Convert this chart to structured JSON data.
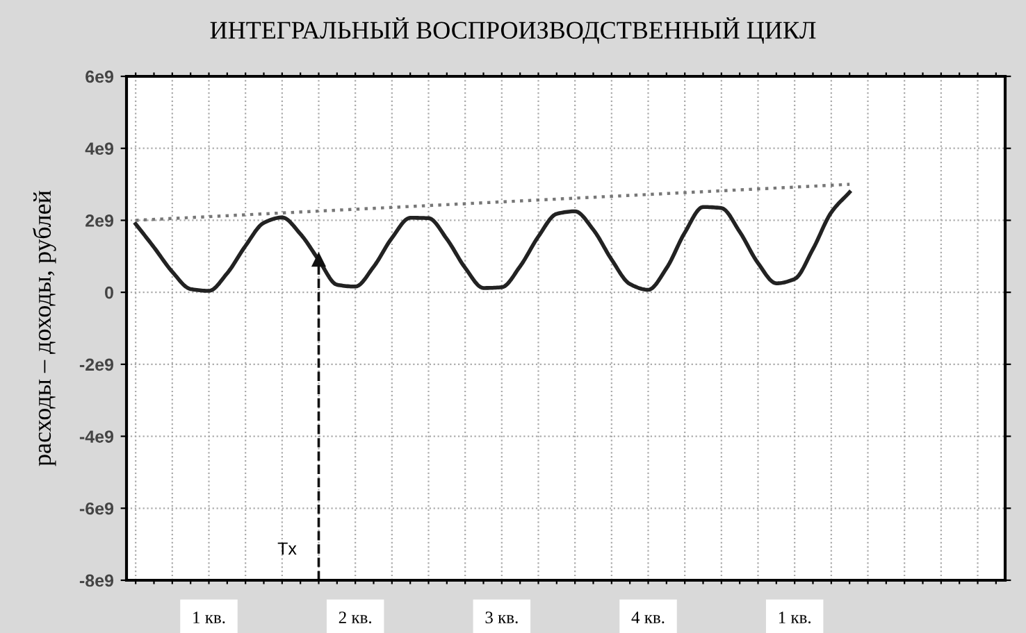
{
  "chart_data": {
    "type": "line",
    "title": "ИНТЕГРАЛЬНЫЙ ВОСПРОИЗВОДСТВЕННЫЙ ЦИКЛ",
    "ylabel": "расходы – доходы, рублей",
    "categories": [
      null,
      null,
      null,
      null,
      "1 кв.",
      null,
      null,
      null,
      null,
      null,
      null,
      null,
      "2 кв.",
      null,
      null,
      null,
      null,
      null,
      null,
      null,
      "3 кв.",
      null,
      null,
      null,
      null,
      null,
      null,
      null,
      "4 кв.",
      null,
      null,
      null,
      null,
      null,
      null,
      null,
      "1 кв.",
      null,
      null,
      null,
      null,
      null,
      null,
      null,
      null,
      null,
      null,
      null
    ],
    "ylim": [
      -8000000000,
      6000000000
    ],
    "yticks": [
      {
        "value": 6000000000,
        "label": "6e9"
      },
      {
        "value": 4000000000,
        "label": "4e9"
      },
      {
        "value": 2000000000,
        "label": "2e9"
      },
      {
        "value": 0,
        "label": "0"
      },
      {
        "value": -2000000000,
        "label": "-2e9"
      },
      {
        "value": -4000000000,
        "label": "-4e9"
      },
      {
        "value": -6000000000,
        "label": "-6e9"
      },
      {
        "value": -8000000000,
        "label": "-8e9"
      }
    ],
    "grid": true,
    "series": [
      {
        "color": "#222222",
        "line_style": "solid",
        "values": [
          1900000000,
          1250000000,
          570000000,
          90000000,
          40000000,
          530000000,
          1290000000,
          1930000000,
          2080000000,
          1620000000,
          900000000,
          210000000,
          160000000,
          710000000,
          1510000000,
          2070000000,
          2060000000,
          1480000000,
          680000000,
          120000000,
          140000000,
          720000000,
          1550000000,
          2180000000,
          2250000000,
          1740000000,
          910000000,
          230000000,
          70000000,
          670000000,
          1660000000,
          2370000000,
          2340000000,
          1680000000,
          810000000,
          250000000,
          370000000,
          1200000000,
          2220000000,
          2780000000,
          null,
          null,
          null,
          null,
          null,
          null,
          null,
          null
        ]
      },
      {
        "color": "#777777",
        "line_style": "dotted",
        "values": [
          2000000000,
          null,
          null,
          null,
          null,
          null,
          null,
          null,
          null,
          null,
          null,
          null,
          null,
          null,
          null,
          null,
          null,
          null,
          null,
          null,
          null,
          null,
          null,
          null,
          null,
          null,
          null,
          null,
          null,
          null,
          null,
          null,
          null,
          null,
          null,
          null,
          null,
          null,
          null,
          3000000000,
          null,
          null,
          null,
          null,
          null,
          null,
          null,
          null
        ]
      },
      {
        "color": "#111111",
        "line_style": "dashed",
        "marker": "triangle",
        "values": [
          null,
          null,
          null,
          null,
          null,
          null,
          null,
          null,
          null,
          null,
          900000000,
          null,
          null,
          null,
          null,
          null,
          null,
          null,
          null,
          null,
          null,
          null,
          null,
          null,
          null,
          null,
          null,
          null,
          null,
          null,
          null,
          null,
          null,
          null,
          null,
          null,
          null,
          null,
          null,
          null,
          null,
          null,
          null,
          null,
          null,
          null,
          null,
          null
        ]
      }
    ],
    "annotations": [
      "Tx"
    ]
  }
}
